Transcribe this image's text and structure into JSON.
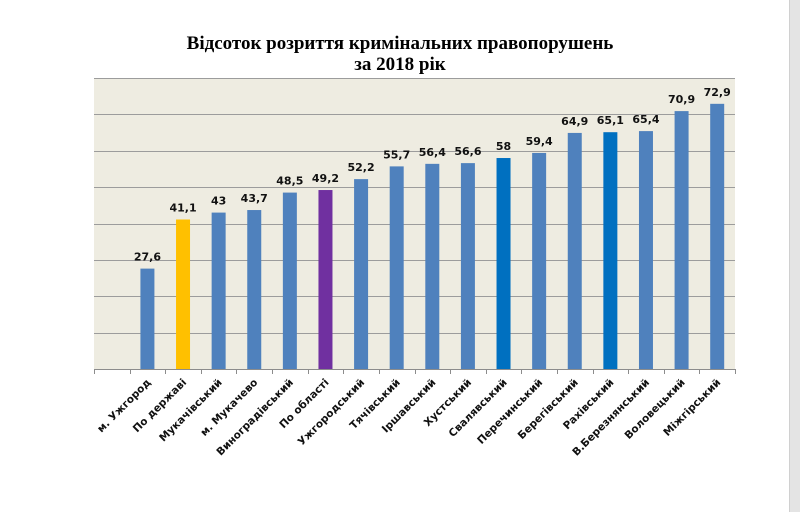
{
  "chart_data": {
    "type": "bar",
    "title": "Відсоток розриття кримінальних правопорушень",
    "subtitle": "за 2018 рік",
    "xlabel": "",
    "ylabel": "",
    "ylim": [
      0,
      80
    ],
    "y_grid_step": 10,
    "grid": true,
    "legend": "none",
    "categories": [
      "",
      "м. Ужгород",
      "По державі",
      "Мукачівський",
      "м. Мукачево",
      "Виноградівський",
      "По області",
      "Ужгородський",
      "Тячівський",
      "Іршавський",
      "Хустський",
      "Свалявський",
      "Перечинський",
      "Берегівський",
      "Рахівський",
      "В.Березнянський",
      "Воловецький",
      "Міжгірський"
    ],
    "values": [
      null,
      27.6,
      41.1,
      43,
      43.7,
      48.5,
      49.2,
      52.2,
      55.7,
      56.4,
      56.6,
      58,
      59.4,
      64.9,
      65.1,
      65.4,
      70.9,
      72.9
    ],
    "data_labels": [
      "",
      "27,6",
      "41,1",
      "43",
      "43,7",
      "48,5",
      "49,2",
      "52,2",
      "55,7",
      "56,4",
      "56,6",
      "58",
      "59,4",
      "64,9",
      "65,1",
      "65,4",
      "70,9",
      "72,9"
    ],
    "bar_colors": [
      "",
      "#4F81BD",
      "#FFC000",
      "#4F81BD",
      "#4F81BD",
      "#4F81BD",
      "#7030A0",
      "#4F81BD",
      "#4F81BD",
      "#4F81BD",
      "#4F81BD",
      "#0070C0",
      "#4F81BD",
      "#4F81BD",
      "#0070C0",
      "#4F81BD",
      "#4F81BD",
      "#4F81BD"
    ],
    "colors": {
      "plot_background": "#EEECE1",
      "gridline": "#9c9c9c",
      "axis": "#8c8c8c",
      "default_bar": "#4F81BD",
      "highlight_country": "#FFC000",
      "highlight_region": "#7030A0",
      "highlight_district": "#0070C0"
    }
  }
}
